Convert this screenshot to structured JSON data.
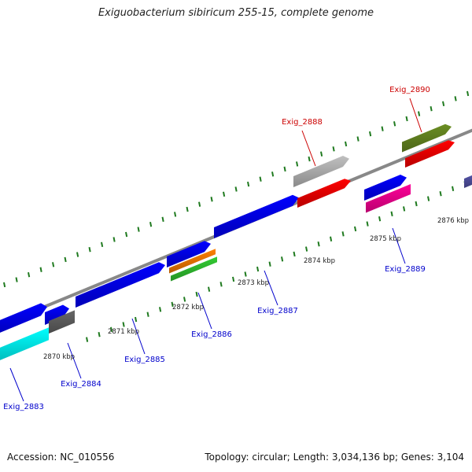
{
  "title": "Exiguobacterium sibiricum 255-15, complete genome",
  "footer": {
    "accession": "Accession: NC_010556",
    "summary": "Topology: circular; Length: 3,034,136 bp; Genes: 3,104"
  },
  "colors": {
    "backbone": "#888888",
    "tick": "#1f7a1f",
    "label_blue": "#0000cc",
    "label_red": "#cc0000"
  },
  "scale_labels": [
    "2870 kbp",
    "2871 kbp",
    "2872 kbp",
    "2873 kbp",
    "2874 kbp",
    "2875 kbp",
    "2876 kbp"
  ],
  "gene_labels": [
    {
      "text": "Exig_2883",
      "color": "#0000cc"
    },
    {
      "text": "Exig_2884",
      "color": "#0000cc"
    },
    {
      "text": "Exig_2885",
      "color": "#0000cc"
    },
    {
      "text": "Exig_2886",
      "color": "#0000cc"
    },
    {
      "text": "Exig_2887",
      "color": "#0000cc"
    },
    {
      "text": "Exig_2888",
      "color": "#cc0000"
    },
    {
      "text": "Exig_2889",
      "color": "#0000cc"
    },
    {
      "text": "Exig_2890",
      "color": "#cc0000"
    }
  ],
  "features": [
    {
      "color": "#0000ff"
    },
    {
      "color": "#0000ff"
    },
    {
      "color": "#0000ff"
    },
    {
      "color": "#0000ff"
    },
    {
      "color": "#0000ff"
    },
    {
      "color": "#0000ff"
    },
    {
      "color": "#00ffff"
    },
    {
      "color": "#666666"
    },
    {
      "color": "#ff8000"
    },
    {
      "color": "#33cc33"
    },
    {
      "color": "#c0c0c0"
    },
    {
      "color": "#ff0000"
    },
    {
      "color": "#ff0099"
    },
    {
      "color": "#6b8e23"
    },
    {
      "color": "#ff0000"
    },
    {
      "color": "#5555aa"
    }
  ]
}
